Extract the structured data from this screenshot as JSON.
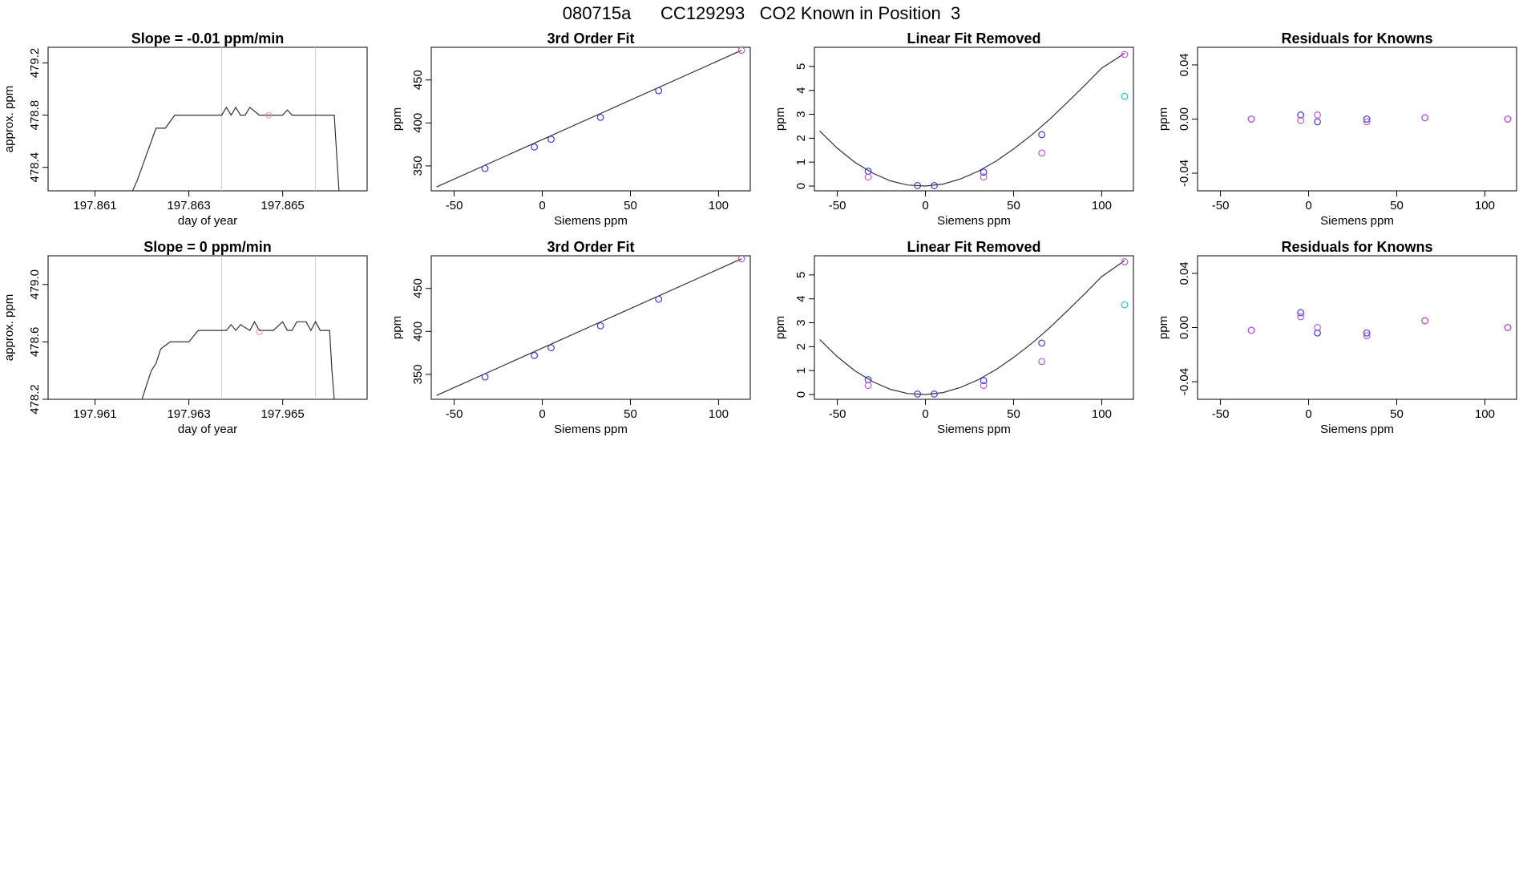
{
  "figure": {
    "title": "080715a      CC129293   CO2 Known in Position  3"
  },
  "colors": {
    "axis": "#000000",
    "line": "#333333",
    "vline": "#cccccc",
    "blue": "#3b3bd6",
    "magenta": "#c055d8",
    "cyan": "#22c3d8",
    "purple": "#7a2ad6",
    "pink": "#f08fb0"
  },
  "chart_data": [
    {
      "panel": "row1-timeseries",
      "type": "line",
      "title": "Slope =  -0.01  ppm/min",
      "xlabel": "day of year",
      "ylabel": "approx. ppm",
      "xlim": [
        197.86,
        197.8668
      ],
      "ylim": [
        478.22,
        479.32
      ],
      "xticks": [
        "197.861",
        "197.863",
        "197.865"
      ],
      "xtick_values": [
        197.861,
        197.863,
        197.865
      ],
      "yticks": [
        "478.4",
        "478.8",
        "479.2"
      ],
      "ytick_values": [
        478.4,
        478.8,
        479.2
      ],
      "vlines": [
        197.8637,
        197.8657
      ],
      "series": [
        {
          "x": [
            197.8618,
            197.8619,
            197.862,
            197.8621,
            197.8622,
            197.8623,
            197.8625,
            197.8627,
            197.8628,
            197.8629,
            197.8631,
            197.8633,
            197.8635,
            197.8636,
            197.8637,
            197.8638,
            197.8639,
            197.864,
            197.8641,
            197.8642,
            197.8643,
            197.8645,
            197.8646,
            197.8648,
            197.865,
            197.8651,
            197.8652,
            197.8653,
            197.8655,
            197.8658,
            197.8661,
            197.86615,
            197.8662
          ],
          "y": [
            478.22,
            478.3,
            478.4,
            478.5,
            478.6,
            478.7,
            478.7,
            478.8,
            478.8,
            478.8,
            478.8,
            478.8,
            478.8,
            478.8,
            478.8,
            478.86,
            478.8,
            478.86,
            478.8,
            478.8,
            478.86,
            478.8,
            478.8,
            478.8,
            478.8,
            478.84,
            478.8,
            478.8,
            478.8,
            478.8,
            478.8,
            478.5,
            478.22
          ]
        }
      ],
      "markers": [
        {
          "x": 197.8647,
          "y": 478.8,
          "color": "pink"
        }
      ]
    },
    {
      "panel": "row1-3rd-order-fit",
      "type": "scatter",
      "title": "3rd Order Fit",
      "xlabel": "Siemens ppm",
      "ylabel": "ppm",
      "xlim": [
        -63,
        118
      ],
      "ylim": [
        321,
        488
      ],
      "xticks": [
        "-50",
        "0",
        "50",
        "100"
      ],
      "xtick_values": [
        -50,
        0,
        50,
        100
      ],
      "yticks": [
        "350",
        "400",
        "450"
      ],
      "ytick_values": [
        350,
        400,
        450
      ],
      "curve": {
        "x": [
          -60,
          113
        ],
        "y": [
          325.5,
          484.5
        ]
      },
      "points": [
        {
          "x": -32.5,
          "y": 347,
          "color": "blue"
        },
        {
          "x": -4.5,
          "y": 372,
          "color": "blue"
        },
        {
          "x": 5,
          "y": 381,
          "color": "blue"
        },
        {
          "x": 33,
          "y": 406.5,
          "color": "blue"
        },
        {
          "x": 66,
          "y": 437.5,
          "color": "blue"
        },
        {
          "x": 113,
          "y": 484.5,
          "color": "magenta"
        }
      ]
    },
    {
      "panel": "row1-linear-fit-removed",
      "type": "scatter",
      "title": "Linear Fit Removed",
      "xlabel": "Siemens ppm",
      "ylabel": "ppm",
      "xlim": [
        -63,
        118
      ],
      "ylim": [
        -0.2,
        5.8
      ],
      "xticks": [
        "-50",
        "0",
        "50",
        "100"
      ],
      "xtick_values": [
        -50,
        0,
        50,
        100
      ],
      "yticks": [
        "0",
        "1",
        "2",
        "3",
        "4",
        "5"
      ],
      "ytick_values": [
        0,
        1,
        2,
        3,
        4,
        5
      ],
      "curve": {
        "x": [
          -60,
          -50,
          -40,
          -30,
          -20,
          -10,
          0,
          10,
          20,
          30,
          40,
          50,
          60,
          70,
          80,
          90,
          100,
          113
        ],
        "y": [
          2.3,
          1.58,
          0.99,
          0.54,
          0.22,
          0.04,
          0.0,
          0.08,
          0.3,
          0.62,
          1.04,
          1.55,
          2.12,
          2.76,
          3.46,
          4.18,
          4.93,
          5.55
        ]
      },
      "points": [
        {
          "x": -32.5,
          "y": 0.62,
          "color": "blue"
        },
        {
          "x": -4.5,
          "y": 0.02,
          "color": "blue"
        },
        {
          "x": 5,
          "y": 0.02,
          "color": "blue"
        },
        {
          "x": 33,
          "y": 0.58,
          "color": "blue"
        },
        {
          "x": 66,
          "y": 2.15,
          "color": "blue"
        },
        {
          "x": -32.5,
          "y": 0.38,
          "color": "magenta"
        },
        {
          "x": 33,
          "y": 0.38,
          "color": "magenta"
        },
        {
          "x": 66,
          "y": 1.38,
          "color": "magenta"
        },
        {
          "x": 113,
          "y": 5.5,
          "color": "magenta"
        },
        {
          "x": 113,
          "y": 3.75,
          "color": "cyan"
        }
      ]
    },
    {
      "panel": "row1-residuals",
      "type": "scatter",
      "title": "Residuals for Knowns",
      "xlabel": "Siemens ppm",
      "ylabel": "ppm",
      "xlim": [
        -63,
        118
      ],
      "ylim": [
        -0.053,
        0.053
      ],
      "xticks": [
        "-50",
        "0",
        "50",
        "100"
      ],
      "xtick_values": [
        -50,
        0,
        50,
        100
      ],
      "yticks": [
        "-0.04",
        "0.00",
        "0.04"
      ],
      "ytick_values": [
        -0.04,
        0.0,
        0.04
      ],
      "points": [
        {
          "x": -32.5,
          "y": 0.0,
          "color": "blue"
        },
        {
          "x": -32.5,
          "y": 0.0,
          "color": "magenta"
        },
        {
          "x": -4.5,
          "y": 0.003,
          "color": "blue"
        },
        {
          "x": -4.5,
          "y": -0.001,
          "color": "magenta"
        },
        {
          "x": 5,
          "y": -0.002,
          "color": "blue"
        },
        {
          "x": 5,
          "y": 0.003,
          "color": "magenta"
        },
        {
          "x": 33,
          "y": 0.0,
          "color": "blue"
        },
        {
          "x": 33,
          "y": -0.002,
          "color": "magenta"
        },
        {
          "x": 66,
          "y": 0.001,
          "color": "blue"
        },
        {
          "x": 66,
          "y": 0.001,
          "color": "magenta"
        },
        {
          "x": 113,
          "y": 0.0,
          "color": "blue"
        },
        {
          "x": 113,
          "y": 0.0,
          "color": "magenta"
        }
      ]
    },
    {
      "panel": "row2-timeseries",
      "type": "line",
      "title": "Slope =  0  ppm/min",
      "xlabel": "day of year",
      "ylabel": "approx. ppm",
      "xlim": [
        197.96,
        197.9668
      ],
      "ylim": [
        478.2,
        479.2
      ],
      "xticks": [
        "197.961",
        "197.963",
        "197.965"
      ],
      "xtick_values": [
        197.961,
        197.963,
        197.965
      ],
      "yticks": [
        "478.2",
        "478.6",
        "479.0"
      ],
      "ytick_values": [
        478.2,
        478.6,
        479.0
      ],
      "vlines": [
        197.9637,
        197.9657
      ],
      "series": [
        {
          "x": [
            197.962,
            197.9621,
            197.9622,
            197.9623,
            197.9624,
            197.9626,
            197.9628,
            197.963,
            197.9632,
            197.9634,
            197.9636,
            197.9638,
            197.9639,
            197.964,
            197.9641,
            197.9643,
            197.9644,
            197.9645,
            197.9648,
            197.965,
            197.9651,
            197.9652,
            197.9653,
            197.9655,
            197.9656,
            197.9657,
            197.9658,
            197.9659,
            197.966,
            197.96605,
            197.9661
          ],
          "y": [
            478.2,
            478.3,
            478.4,
            478.45,
            478.55,
            478.6,
            478.6,
            478.6,
            478.68,
            478.68,
            478.68,
            478.68,
            478.72,
            478.68,
            478.72,
            478.68,
            478.74,
            478.68,
            478.68,
            478.74,
            478.68,
            478.68,
            478.74,
            478.74,
            478.68,
            478.74,
            478.68,
            478.68,
            478.68,
            478.4,
            478.2
          ]
        }
      ],
      "markers": [
        {
          "x": 197.9645,
          "y": 478.67,
          "color": "pink"
        }
      ]
    },
    {
      "panel": "row2-3rd-order-fit",
      "type": "scatter",
      "title": "3rd Order Fit",
      "xlabel": "Siemens ppm",
      "ylabel": "ppm",
      "xlim": [
        -63,
        118
      ],
      "ylim": [
        321,
        488
      ],
      "xticks": [
        "-50",
        "0",
        "50",
        "100"
      ],
      "xtick_values": [
        -50,
        0,
        50,
        100
      ],
      "yticks": [
        "350",
        "400",
        "450"
      ],
      "ytick_values": [
        350,
        400,
        450
      ],
      "curve": {
        "x": [
          -60,
          113
        ],
        "y": [
          325.5,
          484.5
        ]
      },
      "points": [
        {
          "x": -32.5,
          "y": 347,
          "color": "blue"
        },
        {
          "x": -4.5,
          "y": 372,
          "color": "blue"
        },
        {
          "x": 5,
          "y": 381,
          "color": "blue"
        },
        {
          "x": 33,
          "y": 406.5,
          "color": "blue"
        },
        {
          "x": 66,
          "y": 437.5,
          "color": "blue"
        },
        {
          "x": 113,
          "y": 484.5,
          "color": "magenta"
        }
      ]
    },
    {
      "panel": "row2-linear-fit-removed",
      "type": "scatter",
      "title": "Linear Fit Removed",
      "xlabel": "Siemens ppm",
      "ylabel": "ppm",
      "xlim": [
        -63,
        118
      ],
      "ylim": [
        -0.2,
        5.8
      ],
      "xticks": [
        "-50",
        "0",
        "50",
        "100"
      ],
      "xtick_values": [
        -50,
        0,
        50,
        100
      ],
      "yticks": [
        "0",
        "1",
        "2",
        "3",
        "4",
        "5"
      ],
      "ytick_values": [
        0,
        1,
        2,
        3,
        4,
        5
      ],
      "curve": {
        "x": [
          -60,
          -50,
          -40,
          -30,
          -20,
          -10,
          0,
          10,
          20,
          30,
          40,
          50,
          60,
          70,
          80,
          90,
          100,
          113
        ],
        "y": [
          2.3,
          1.58,
          0.99,
          0.54,
          0.22,
          0.04,
          0.0,
          0.08,
          0.3,
          0.62,
          1.04,
          1.55,
          2.12,
          2.76,
          3.46,
          4.18,
          4.93,
          5.6
        ]
      },
      "points": [
        {
          "x": -32.5,
          "y": 0.62,
          "color": "blue"
        },
        {
          "x": -4.5,
          "y": 0.02,
          "color": "blue"
        },
        {
          "x": 5,
          "y": 0.02,
          "color": "blue"
        },
        {
          "x": 33,
          "y": 0.58,
          "color": "blue"
        },
        {
          "x": 66,
          "y": 2.15,
          "color": "blue"
        },
        {
          "x": -32.5,
          "y": 0.38,
          "color": "magenta"
        },
        {
          "x": 33,
          "y": 0.38,
          "color": "magenta"
        },
        {
          "x": 66,
          "y": 1.38,
          "color": "magenta"
        },
        {
          "x": 113,
          "y": 5.55,
          "color": "magenta"
        },
        {
          "x": 113,
          "y": 3.75,
          "color": "cyan"
        }
      ]
    },
    {
      "panel": "row2-residuals",
      "type": "scatter",
      "title": "Residuals for Knowns",
      "xlabel": "Siemens ppm",
      "ylabel": "ppm",
      "xlim": [
        -63,
        118
      ],
      "ylim": [
        -0.053,
        0.053
      ],
      "xticks": [
        "-50",
        "0",
        "50",
        "100"
      ],
      "xtick_values": [
        -50,
        0,
        50,
        100
      ],
      "yticks": [
        "-0.04",
        "0.00",
        "0.04"
      ],
      "ytick_values": [
        -0.04,
        0.0,
        0.04
      ],
      "points": [
        {
          "x": -32.5,
          "y": -0.002,
          "color": "blue"
        },
        {
          "x": -32.5,
          "y": -0.002,
          "color": "magenta"
        },
        {
          "x": -4.5,
          "y": 0.011,
          "color": "blue"
        },
        {
          "x": -4.5,
          "y": 0.008,
          "color": "magenta"
        },
        {
          "x": 5,
          "y": -0.004,
          "color": "blue"
        },
        {
          "x": 5,
          "y": 0.0,
          "color": "magenta"
        },
        {
          "x": 33,
          "y": -0.004,
          "color": "blue"
        },
        {
          "x": 33,
          "y": -0.006,
          "color": "magenta"
        },
        {
          "x": 66,
          "y": 0.005,
          "color": "blue"
        },
        {
          "x": 66,
          "y": 0.005,
          "color": "magenta"
        },
        {
          "x": 113,
          "y": 0.0,
          "color": "blue"
        },
        {
          "x": 113,
          "y": 0.0,
          "color": "magenta"
        }
      ]
    }
  ]
}
